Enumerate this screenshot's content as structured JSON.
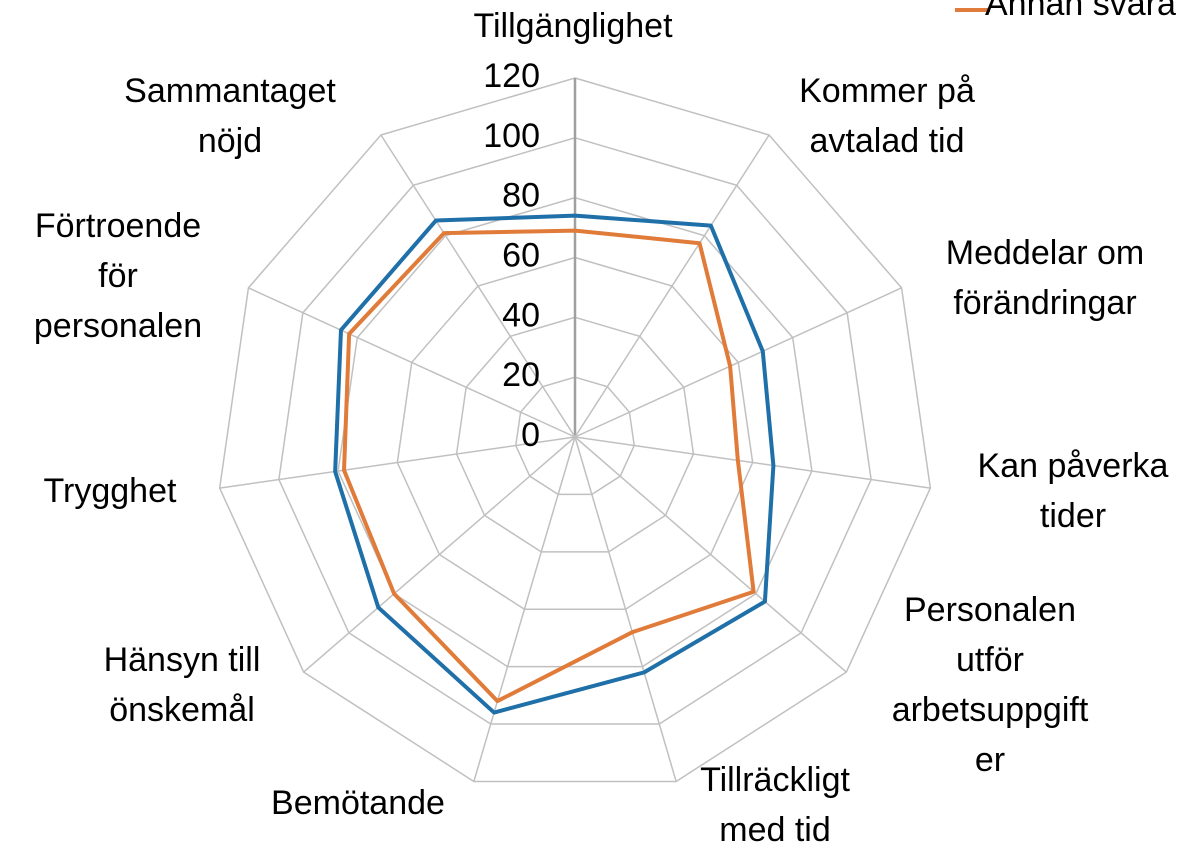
{
  "chart_data": {
    "type": "radar",
    "categories": [
      [
        "Tillgänglighet"
      ],
      [
        "Kommer på",
        "avtalad tid"
      ],
      [
        "Meddelar om",
        "förändringar"
      ],
      [
        "Kan påverka",
        "tider"
      ],
      [
        "Personalen",
        "utför",
        "arbetsuppgift",
        "er"
      ],
      [
        "Tillräckligt",
        "med tid"
      ],
      [
        "Bemötande"
      ],
      [
        "Hänsyn till",
        "önskemål"
      ],
      [
        "Trygghet"
      ],
      [
        "Förtroende",
        "för",
        "personalen"
      ],
      [
        "Sammantaget",
        "nöjd"
      ]
    ],
    "series": [
      {
        "color": "#1f6fa8",
        "values": [
          74,
          84,
          69,
          67,
          84,
          82,
          96,
          87,
          81,
          86,
          86
        ]
      },
      {
        "name": "Annan svara",
        "color": "#e07b39",
        "values": [
          69,
          77,
          57,
          55,
          79,
          68,
          92,
          80,
          78,
          83,
          81
        ]
      }
    ],
    "rlim": [
      0,
      120
    ],
    "rticks": [
      0,
      20,
      40,
      60,
      80,
      100,
      120
    ],
    "grid": true,
    "legend": "top-right"
  }
}
